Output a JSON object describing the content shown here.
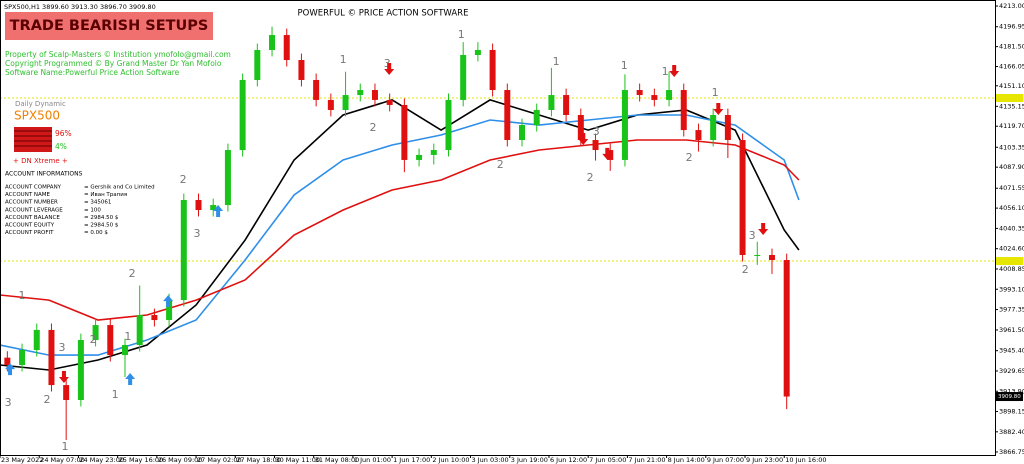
{
  "header": {
    "symbol_line": "SPX500,H1  3899.60 3913.30 3896.70 3909.80",
    "title": "POWERFUL © PRICE ACTION SOFTWARE",
    "badge": "TRADE BEARISH SETUPS",
    "info_lines": [
      "Property of Scalp-Masters © Institution ymofolo@gmail.com",
      "Copyright Programmed © By Grand Master Dr Yan Mofolo",
      "Software Name:Powerful Price Action Software"
    ]
  },
  "panel": {
    "title": "Daily Dynamic",
    "symbol": "SPX500",
    "bear_pct": "96%",
    "bull_pct": "4%",
    "signal": "+ DN Xtreme +"
  },
  "account": {
    "title": "ACCOUNT INFORMATIONS",
    "rows": [
      [
        "ACCOUNT COMPANY",
        "= Gershik and Co Limited"
      ],
      [
        "ACCOUNT NAME",
        "= Иван Трапия"
      ],
      [
        "ACCOUNT NUMBER",
        "= 345061"
      ],
      [
        "ACCOUNT LEVERAGE",
        "= 100"
      ],
      [
        "ACCOUNT BALANCE",
        "= 2984.50 $"
      ],
      [
        "ACCOUNT EQUITY",
        "= 2984.50 $"
      ],
      [
        "ACCOUNT PROFIT",
        "= 0.00 $"
      ]
    ]
  },
  "chart_data": {
    "type": "candlestick",
    "xlim": [
      0,
      406
    ],
    "ylim": [
      3864.4,
      4217.7
    ],
    "xticks": [
      {
        "value": 0,
        "label": "23 May 2022"
      },
      {
        "value": 16,
        "label": "24 May 07:00"
      },
      {
        "value": 32,
        "label": "24 May 23:00"
      },
      {
        "value": 48,
        "label": "25 May 16:00"
      },
      {
        "value": 64,
        "label": "26 May 09:00"
      },
      {
        "value": 80,
        "label": "27 May 02:00"
      },
      {
        "value": 96,
        "label": "27 May 18:00"
      },
      {
        "value": 112,
        "label": "30 May 11:00"
      },
      {
        "value": 128,
        "label": "31 May 08:00"
      },
      {
        "value": 144,
        "label": "1 Jun 01:00"
      },
      {
        "value": 160,
        "label": "1 Jun 17:00"
      },
      {
        "value": 176,
        "label": "2 Jun 10:00"
      },
      {
        "value": 192,
        "label": "3 Jun 03:00"
      },
      {
        "value": 208,
        "label": "3 Jun 19:00"
      },
      {
        "value": 224,
        "label": "6 Jun 12:00"
      },
      {
        "value": 240,
        "label": "7 Jun 05:00"
      },
      {
        "value": 256,
        "label": "7 Jun 21:00"
      },
      {
        "value": 272,
        "label": "8 Jun 14:00"
      },
      {
        "value": 288,
        "label": "9 Jun 07:00"
      },
      {
        "value": 304,
        "label": "9 Jun 23:00"
      },
      {
        "value": 320,
        "label": "10 Jun 16:00"
      }
    ],
    "yticks": [
      {
        "value": 4213,
        "label": "4213.00"
      },
      {
        "value": 4196.95,
        "label": "4196.95"
      },
      {
        "value": 4181.5,
        "label": "4181.50"
      },
      {
        "value": 4166.05,
        "label": "4166.05"
      },
      {
        "value": 4151.1,
        "label": "4151.10"
      },
      {
        "value": 4135.15,
        "label": "4135.15"
      },
      {
        "value": 4119.7,
        "label": "4119.70"
      },
      {
        "value": 4103.35,
        "label": "4103.35"
      },
      {
        "value": 4087.9,
        "label": "4087.90"
      },
      {
        "value": 4071.55,
        "label": "4071.55"
      },
      {
        "value": 4056.1,
        "label": "4056.10"
      },
      {
        "value": 4040.35,
        "label": "4040.35"
      },
      {
        "value": 4024.6,
        "label": "4024.60"
      },
      {
        "value": 4008.85,
        "label": "4008.85"
      },
      {
        "value": 3993.1,
        "label": "3993.10"
      },
      {
        "value": 3977.35,
        "label": "3977.35"
      },
      {
        "value": 3961.5,
        "label": "3961.50"
      },
      {
        "value": 3945.4,
        "label": "3945.40"
      },
      {
        "value": 3929.65,
        "label": "3929.65"
      },
      {
        "value": 3913.9,
        "label": "3913.90"
      },
      {
        "value": 3898.15,
        "label": "3898.15"
      },
      {
        "value": 3882.4,
        "label": "3882.40"
      },
      {
        "value": 3866.75,
        "label": "3866.75"
      }
    ],
    "up_color": "#19c319",
    "down_color": "#e01010",
    "candles": {
      "x": [
        3,
        9,
        15,
        21,
        27,
        33,
        39,
        45,
        51,
        57,
        63,
        69,
        75,
        81,
        87,
        93,
        99,
        105,
        111,
        117,
        123,
        129,
        135,
        141,
        147,
        153,
        159,
        165,
        171,
        177,
        183,
        189,
        195,
        201,
        207,
        213,
        219,
        225,
        231,
        237,
        243,
        249,
        255,
        261,
        267,
        273,
        279,
        285,
        291,
        297,
        303,
        309,
        315,
        321
      ],
      "open": [
        3940.0,
        3934.3,
        3945.9,
        3961.5,
        3918.7,
        3907.1,
        3953.7,
        3965.3,
        3942.0,
        3949.8,
        3973.1,
        3969.2,
        3984.7,
        4062.4,
        4054.6,
        4058.5,
        4101.2,
        4155.6,
        4178.9,
        4190.5,
        4171.1,
        4155.6,
        4140.1,
        4132.3,
        4143.9,
        4147.8,
        4140.1,
        4136.2,
        4093.5,
        4097.4,
        4101.2,
        4140.1,
        4175.0,
        4178.9,
        4147.8,
        4109.0,
        4120.6,
        4132.3,
        4143.9,
        4128.4,
        4109.0,
        4101.2,
        4093.5,
        4147.8,
        4143.9,
        4140.1,
        4147.8,
        4116.7,
        4109.0,
        4128.4,
        4109.0,
        4019.7,
        4019.7,
        4015.8
      ],
      "high": [
        3945.0,
        3950.9,
        3966.5,
        3966.5,
        3923.7,
        3958.7,
        3970.3,
        3970.3,
        3954.8,
        3996.0,
        3978.1,
        3989.7,
        4067.4,
        4067.4,
        4063.5,
        4106.2,
        4160.6,
        4183.9,
        4197.0,
        4195.5,
        4176.1,
        4160.6,
        4145.1,
        4162.0,
        4152.8,
        4152.8,
        4145.1,
        4141.2,
        4102.4,
        4106.2,
        4145.1,
        4185.0,
        4185.0,
        4183.9,
        4152.8,
        4125.6,
        4137.3,
        4165.0,
        4148.9,
        4133.4,
        4114.0,
        4106.2,
        4160.0,
        4152.8,
        4148.9,
        4162.0,
        4152.8,
        4121.7,
        4133.4,
        4133.4,
        4114.0,
        4030.0,
        4024.7,
        4020.8
      ],
      "low": [
        3929.3,
        3929.3,
        3940.9,
        3913.7,
        3876.0,
        3902.1,
        3948.7,
        3937.0,
        3925.0,
        3944.8,
        3964.2,
        3964.2,
        3979.7,
        4049.6,
        4049.6,
        4053.5,
        4096.2,
        4150.6,
        4173.9,
        4166.1,
        4150.6,
        4135.1,
        4127.3,
        4127.3,
        4138.9,
        4135.1,
        4131.2,
        4084.0,
        4088.5,
        4090.0,
        4096.2,
        4135.1,
        4170.0,
        4142.8,
        4104.0,
        4104.0,
        4115.6,
        4127.3,
        4123.4,
        4104.0,
        4093.0,
        4085.0,
        4088.5,
        4138.9,
        4135.1,
        4135.1,
        4111.7,
        4100.0,
        4104.0,
        4095.0,
        4014.7,
        4012.0,
        4005.0,
        3900.0
      ],
      "close": [
        3934.3,
        3945.9,
        3961.5,
        3918.7,
        3907.1,
        3953.7,
        3965.3,
        3942.0,
        3949.8,
        3973.1,
        3969.2,
        3984.7,
        4062.4,
        4054.6,
        4058.5,
        4101.2,
        4155.6,
        4178.9,
        4190.5,
        4171.1,
        4155.6,
        4140.1,
        4132.3,
        4143.9,
        4147.8,
        4140.1,
        4136.2,
        4093.5,
        4097.4,
        4101.2,
        4140.1,
        4175.0,
        4178.9,
        4147.8,
        4109.0,
        4120.6,
        4132.3,
        4143.9,
        4128.4,
        4109.0,
        4101.2,
        4093.5,
        4147.8,
        4143.9,
        4140.1,
        4147.8,
        4116.7,
        4109.0,
        4128.4,
        4109.0,
        4019.7,
        4019.7,
        4015.8,
        3909.8
      ]
    },
    "series": [
      {
        "color": "#000000",
        "x": [
          0,
          20,
          40,
          60,
          80,
          100,
          120,
          140,
          160,
          180,
          200,
          220,
          240,
          260,
          280,
          300,
          320,
          326
        ],
        "values": [
          3934.3,
          3930.4,
          3938.2,
          3949.8,
          3980.9,
          4031.3,
          4093.5,
          4128.4,
          4140.1,
          4116.7,
          4140.1,
          4128.4,
          4116.7,
          4128.4,
          4132.3,
          4116.7,
          4039.1,
          4023.6
        ]
      },
      {
        "color": "#2f8fe8",
        "x": [
          0,
          20,
          40,
          60,
          80,
          100,
          120,
          140,
          160,
          180,
          200,
          220,
          240,
          260,
          280,
          300,
          320,
          326
        ],
        "values": [
          3949.8,
          3942.0,
          3942.0,
          3953.7,
          3969.2,
          4015.8,
          4066.3,
          4093.5,
          4105.1,
          4112.9,
          4124.5,
          4120.6,
          4124.5,
          4128.4,
          4128.4,
          4120.6,
          4093.5,
          4062.4
        ]
      },
      {
        "color": "#e01010",
        "x": [
          0,
          20,
          40,
          60,
          80,
          100,
          120,
          140,
          160,
          180,
          200,
          220,
          240,
          260,
          280,
          300,
          320,
          326
        ],
        "values": [
          3988.6,
          3984.7,
          3969.2,
          3973.1,
          3984.7,
          4000.3,
          4035.2,
          4054.6,
          4070.2,
          4077.9,
          4093.5,
          4101.2,
          4105.1,
          4109.0,
          4109.0,
          4105.1,
          4089.6,
          4077.9
        ]
      }
    ],
    "levels": [
      4141.6,
      4015.0
    ],
    "level_color": "#e6e600",
    "current_price": {
      "value": 3909.8,
      "label": "3909.80"
    },
    "wave_labels": [
      {
        "text": "3",
        "x": 3.3,
        "y": 3904.8
      },
      {
        "text": "1",
        "x": 9,
        "y": 3987.9
      },
      {
        "text": "2",
        "x": 19.2,
        "y": 3907.1
      },
      {
        "text": "3",
        "x": 25.3,
        "y": 3947.5
      },
      {
        "text": "1",
        "x": 26.5,
        "y": 3870.6
      },
      {
        "text": "2",
        "x": 38,
        "y": 3953.7
      },
      {
        "text": "1",
        "x": 47,
        "y": 3911.0
      },
      {
        "text": "2",
        "x": 53.9,
        "y": 4004.9
      },
      {
        "text": "1",
        "x": 52.2,
        "y": 3956.0
      },
      {
        "text": "2",
        "x": 74.7,
        "y": 4077.9
      },
      {
        "text": "3",
        "x": 80.4,
        "y": 4036.0
      },
      {
        "text": "1",
        "x": 140,
        "y": 4171.1
      },
      {
        "text": "3",
        "x": 158,
        "y": 4168.0
      },
      {
        "text": "2",
        "x": 152.2,
        "y": 4118.3
      },
      {
        "text": "1",
        "x": 188.2,
        "y": 4190.5
      },
      {
        "text": "2",
        "x": 204.1,
        "y": 4089.6
      },
      {
        "text": "1",
        "x": 226.9,
        "y": 4169.6
      },
      {
        "text": "3",
        "x": 243.3,
        "y": 4115.2
      },
      {
        "text": "2",
        "x": 240.8,
        "y": 4079.5
      },
      {
        "text": "1",
        "x": 254.7,
        "y": 4166.5
      },
      {
        "text": "1",
        "x": 271.4,
        "y": 4161.8
      },
      {
        "text": "2",
        "x": 281.2,
        "y": 4095.0
      },
      {
        "text": "1",
        "x": 291.8,
        "y": 4145.5
      },
      {
        "text": "3",
        "x": 306.9,
        "y": 4034.4
      },
      {
        "text": "2",
        "x": 304.1,
        "y": 4008.0
      }
    ],
    "arrows": [
      {
        "dir": "down",
        "x": 26.1,
        "y": 3924.2
      },
      {
        "dir": "down",
        "x": 158.8,
        "y": 4163.3
      },
      {
        "dir": "down",
        "x": 238,
        "y": 4109.0
      },
      {
        "dir": "down",
        "x": 247.8,
        "y": 4097.4
      },
      {
        "dir": "down",
        "x": 275.1,
        "y": 4161.8
      },
      {
        "dir": "down",
        "x": 293.1,
        "y": 4132.3
      },
      {
        "dir": "down",
        "x": 311.4,
        "y": 4039.1
      },
      {
        "dir": "up",
        "x": 4.1,
        "y": 3931.9
      },
      {
        "dir": "up",
        "x": 53.1,
        "y": 3924.2
      },
      {
        "dir": "up",
        "x": 68.6,
        "y": 3984.7
      },
      {
        "dir": "up",
        "x": 89,
        "y": 4054.6
      }
    ]
  }
}
